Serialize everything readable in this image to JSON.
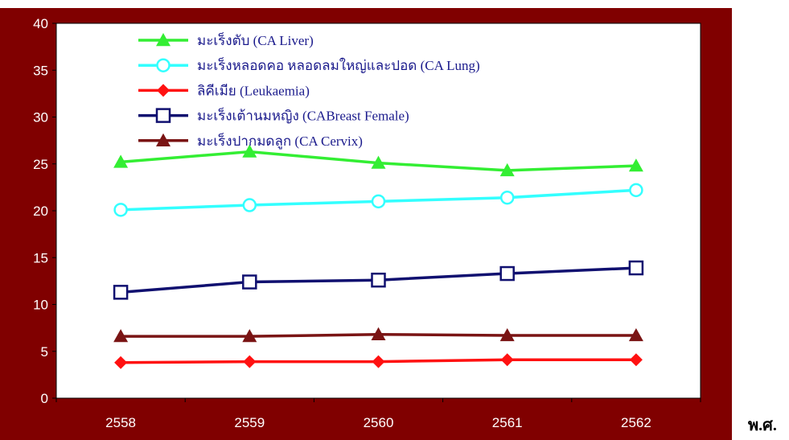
{
  "chart_data": {
    "type": "line",
    "categories": [
      "2558",
      "2559",
      "2560",
      "2561",
      "2562"
    ],
    "xlabel": "พ.ศ.",
    "ylim": [
      0,
      40
    ],
    "yticks": [
      "0",
      "5",
      "10",
      "15",
      "20",
      "25",
      "30",
      "35",
      "40"
    ],
    "grid": false,
    "legend_position": "top-left",
    "series": [
      {
        "name": "มะเร็งตับ (CA Liver)",
        "marker": "triangle-filled",
        "color": "#33ee33",
        "values": [
          25.2,
          26.3,
          25.1,
          24.3,
          24.8
        ]
      },
      {
        "name": "มะเร็งหลอดคอ หลอดลมใหญ่และปอด (CA Lung)",
        "marker": "circle-open",
        "color": "#33ffff",
        "values": [
          20.1,
          20.6,
          21.0,
          21.4,
          22.2
        ]
      },
      {
        "name": "ลิคีเมีย (Leukaemia)",
        "marker": "diamond-filled",
        "color": "#ff1111",
        "values": [
          3.8,
          3.9,
          3.9,
          4.1,
          4.1
        ]
      },
      {
        "name": "มะเร็งเต้านมหญิง (CABreast Female)",
        "marker": "square-open",
        "color": "#101070",
        "values": [
          11.3,
          12.4,
          12.6,
          13.3,
          13.9
        ]
      },
      {
        "name": "มะเร็งปากมดลูก (CA Cervix)",
        "marker": "triangle-filled",
        "color": "#7a1414",
        "values": [
          6.6,
          6.6,
          6.8,
          6.7,
          6.7
        ]
      }
    ],
    "colors": {
      "frame": "#800000",
      "plot_background": "#ffffff",
      "tick_text": "#ffffff",
      "legend_text": "#1a1a8c"
    }
  }
}
